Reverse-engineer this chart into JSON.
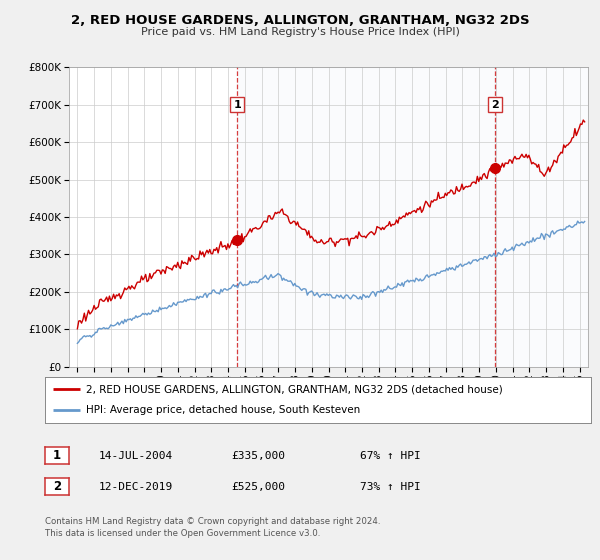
{
  "title": "2, RED HOUSE GARDENS, ALLINGTON, GRANTHAM, NG32 2DS",
  "subtitle": "Price paid vs. HM Land Registry's House Price Index (HPI)",
  "legend_line1": "2, RED HOUSE GARDENS, ALLINGTON, GRANTHAM, NG32 2DS (detached house)",
  "legend_line2": "HPI: Average price, detached house, South Kesteven",
  "footnote1": "Contains HM Land Registry data © Crown copyright and database right 2024.",
  "footnote2": "This data is licensed under the Open Government Licence v3.0.",
  "sale1_date": "14-JUL-2004",
  "sale1_price": "£335,000",
  "sale1_hpi": "67% ↑ HPI",
  "sale2_date": "12-DEC-2019",
  "sale2_price": "£525,000",
  "sale2_hpi": "73% ↑ HPI",
  "red_color": "#cc0000",
  "blue_color": "#6699cc",
  "bg_color": "#f0f0f0",
  "plot_bg_color": "#ffffff",
  "grid_color": "#cccccc",
  "sale1_x": 2004.54,
  "sale2_x": 2019.95,
  "ylim_max": 800000,
  "ylim_min": 0,
  "xmin": 1994.5,
  "xmax": 2025.5
}
